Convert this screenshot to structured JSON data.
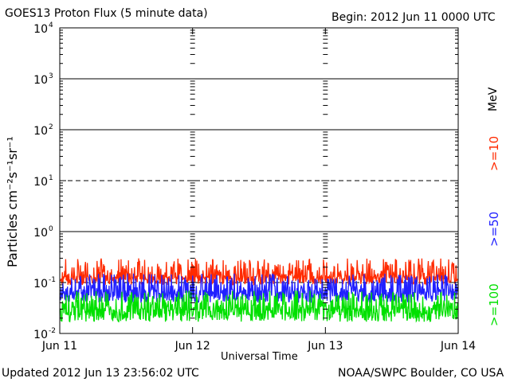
{
  "header": {
    "title": "GOES13 Proton Flux (5 minute data)",
    "begin": "Begin: 2012 Jun 11 0000 UTC"
  },
  "footer": {
    "updated": "Updated 2012 Jun 13 23:56:02 UTC",
    "credit": "NOAA/SWPC Boulder, CO USA"
  },
  "legend": {
    "unit": "MeV",
    "items": [
      {
        "label": ">=10",
        "color": "#ff2a00"
      },
      {
        "label": ">=50",
        "color": "#2020ff"
      },
      {
        "label": ">=100",
        "color": "#00e000"
      }
    ]
  },
  "chart_data": {
    "type": "line",
    "title": "GOES13 Proton Flux (5 minute data)",
    "xlabel": "Universal Time",
    "ylabel": "Particles cm⁻²s⁻¹sr⁻¹",
    "yscale": "log",
    "ylim": [
      0.01,
      10000
    ],
    "x_ticks": [
      "Jun 11",
      "Jun 12",
      "Jun 13",
      "Jun 14"
    ],
    "y_ticks": [
      {
        "base": "10",
        "exp": "-2"
      },
      {
        "base": "10",
        "exp": "-1"
      },
      {
        "base": "10",
        "exp": "0"
      },
      {
        "base": "10",
        "exp": "1"
      },
      {
        "base": "10",
        "exp": "2"
      },
      {
        "base": "10",
        "exp": "3"
      },
      {
        "base": "10",
        "exp": "4"
      }
    ],
    "threshold_lines": [
      {
        "value": 0.1,
        "style": "dashed"
      },
      {
        "value": 1,
        "style": "solid"
      },
      {
        "value": 10,
        "style": "dashed"
      },
      {
        "value": 100,
        "style": "solid"
      },
      {
        "value": 1000,
        "style": "solid"
      }
    ],
    "series": [
      {
        "name": ">=10 MeV",
        "color": "#ff2a00",
        "typical_range": [
          0.09,
          0.3
        ],
        "median": 0.13
      },
      {
        "name": ">=50 MeV",
        "color": "#2020ff",
        "typical_range": [
          0.04,
          0.15
        ],
        "median": 0.065
      },
      {
        "name": ">=100 MeV",
        "color": "#00e000",
        "typical_range": [
          0.017,
          0.07
        ],
        "median": 0.03
      }
    ]
  }
}
